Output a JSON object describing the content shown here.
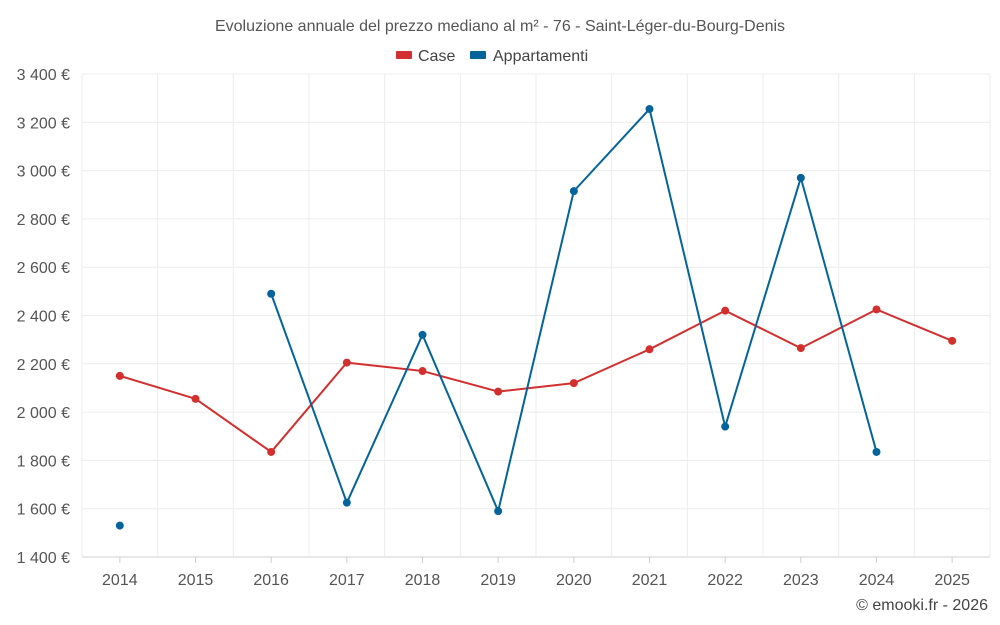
{
  "chart_data": {
    "type": "line",
    "title": "Evoluzione annuale del prezzo mediano al m² - 76 - Saint-Léger-du-Bourg-Denis",
    "categories": [
      "2014",
      "2015",
      "2016",
      "2017",
      "2018",
      "2019",
      "2020",
      "2021",
      "2022",
      "2023",
      "2024",
      "2025"
    ],
    "y_ticks": [
      1400,
      1600,
      1800,
      2000,
      2200,
      2400,
      2600,
      2800,
      3000,
      3200,
      3400
    ],
    "y_tick_labels": [
      "1 400 €",
      "1 600 €",
      "1 800 €",
      "2 000 €",
      "2 200 €",
      "2 400 €",
      "2 600 €",
      "2 800 €",
      "3 000 €",
      "3 200 €",
      "3 400 €"
    ],
    "ylim": [
      1400,
      3400
    ],
    "grid": true,
    "legend_position": "top-center",
    "series": [
      {
        "name": "Case",
        "color": "#d32f2f",
        "values": [
          2150,
          2055,
          1835,
          2205,
          2170,
          2085,
          2120,
          2260,
          2420,
          2265,
          2425,
          2295
        ]
      },
      {
        "name": "Appartamenti",
        "color": "#03649b",
        "values": [
          1530,
          null,
          2490,
          1625,
          2320,
          1590,
          2915,
          3255,
          1940,
          2970,
          1835,
          null
        ]
      }
    ],
    "footer": "© emooki.fr - 2026"
  }
}
